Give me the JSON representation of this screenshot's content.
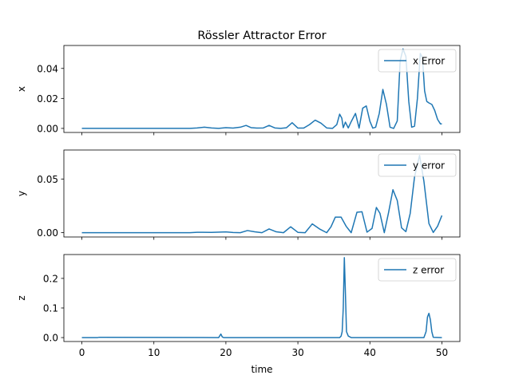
{
  "chart_data": {
    "type": "line",
    "title": "Rössler Attractor Error",
    "xlabel": "time",
    "xlim": [
      -2.5,
      52.5
    ],
    "xticks": [
      0,
      10,
      20,
      30,
      40,
      50
    ],
    "line_color": "#1f77b4",
    "panels": [
      {
        "ylabel": "x",
        "ylim": [
          -0.0027,
          0.0553
        ],
        "yticks": [
          0.0,
          0.02,
          0.04
        ],
        "ytick_labels": [
          "0.00",
          "0.02",
          "0.04"
        ],
        "legend": "x Error",
        "legend_position": "upper right",
        "x": [
          0,
          15,
          16,
          17,
          18,
          19,
          20,
          21,
          22,
          22.8,
          23.5,
          24.3,
          25.2,
          26,
          26.8,
          27.6,
          28.4,
          29.2,
          30,
          30.8,
          31.6,
          32.4,
          33.2,
          34,
          34.8,
          35.4,
          35.8,
          36.1,
          36.3,
          36.6,
          37.0,
          37.4,
          38,
          38.5,
          39,
          39.5,
          40,
          40.4,
          40.8,
          41.3,
          41.8,
          42.3,
          42.8,
          43.3,
          43.8,
          44.2,
          44.6,
          45,
          45.4,
          45.8,
          46.2,
          46.6,
          47.0,
          47.3,
          47.6,
          47.9,
          48.2,
          48.6,
          49.0,
          49.4,
          49.8,
          50
        ],
        "values": [
          0.0,
          0.0,
          0.0003,
          0.0008,
          0.0003,
          0.0,
          0.0005,
          0.0002,
          0.0008,
          0.002,
          0.0005,
          0.0002,
          0.0003,
          0.002,
          0.0003,
          0.0,
          0.0004,
          0.0038,
          0.0002,
          0.0002,
          0.0025,
          0.0055,
          0.0035,
          0.0003,
          0.0,
          0.0025,
          0.0095,
          0.0068,
          0.0005,
          0.0042,
          0.0003,
          0.0045,
          0.01,
          0.0002,
          0.0135,
          0.015,
          0.0048,
          0.0002,
          0.0008,
          0.01,
          0.026,
          0.016,
          0.0008,
          0.0,
          0.005,
          0.045,
          0.053,
          0.048,
          0.018,
          0.0008,
          0.0015,
          0.02,
          0.05,
          0.047,
          0.025,
          0.018,
          0.017,
          0.016,
          0.012,
          0.006,
          0.003,
          0.003
        ]
      },
      {
        "ylabel": "y",
        "ylim": [
          -0.004,
          0.077
        ],
        "yticks": [
          0.0,
          0.05
        ],
        "ytick_labels": [
          "0.00",
          "0.05"
        ],
        "legend": "y error",
        "legend_position": "upper right",
        "x": [
          0,
          15,
          16,
          18,
          20,
          21,
          22,
          23,
          24,
          25,
          26,
          27,
          28,
          29,
          30,
          31,
          32,
          33,
          34,
          34.6,
          35.2,
          36.0,
          36.7,
          37.4,
          38.2,
          38.9,
          39.6,
          40.3,
          40.9,
          41.4,
          42.0,
          42.6,
          43.2,
          43.8,
          44.4,
          45.0,
          45.6,
          46.2,
          46.9,
          47.5,
          48.2,
          48.8,
          49.4,
          50
        ],
        "values": [
          0.0,
          0.0,
          0.0004,
          0.0003,
          0.0007,
          0.0002,
          0.0,
          0.002,
          0.0008,
          0.0,
          0.0035,
          0.0008,
          0.0,
          0.0055,
          0.0003,
          0.0,
          0.0082,
          0.0035,
          0.0,
          0.0055,
          0.0145,
          0.0145,
          0.006,
          0.0,
          0.019,
          0.0195,
          0.0005,
          0.004,
          0.0235,
          0.018,
          0.0,
          0.019,
          0.04,
          0.03,
          0.0045,
          0.001,
          0.018,
          0.052,
          0.072,
          0.048,
          0.0085,
          0.0002,
          0.006,
          0.016
        ]
      },
      {
        "ylabel": "z",
        "ylim": [
          -0.0133,
          0.2806
        ],
        "yticks": [
          0.0,
          0.1,
          0.2
        ],
        "ytick_labels": [
          "0.0",
          "0.1",
          "0.2"
        ],
        "legend": "z error",
        "legend_position": "upper right",
        "x": [
          0,
          2.2,
          2.4,
          19.0,
          19.3,
          19.5,
          19.7,
          35.8,
          36.0,
          36.15,
          36.3,
          36.45,
          36.6,
          36.75,
          37.0,
          37.4,
          47.5,
          47.8,
          48.0,
          48.2,
          48.4,
          48.6,
          48.8,
          50
        ],
        "values": [
          0.0,
          0.0,
          0.001,
          0.0,
          0.012,
          0.002,
          0.0,
          0.0,
          0.005,
          0.02,
          0.1,
          0.27,
          0.15,
          0.02,
          0.005,
          0.0,
          0.0,
          0.02,
          0.07,
          0.082,
          0.06,
          0.02,
          0.001,
          0.0
        ]
      }
    ]
  }
}
